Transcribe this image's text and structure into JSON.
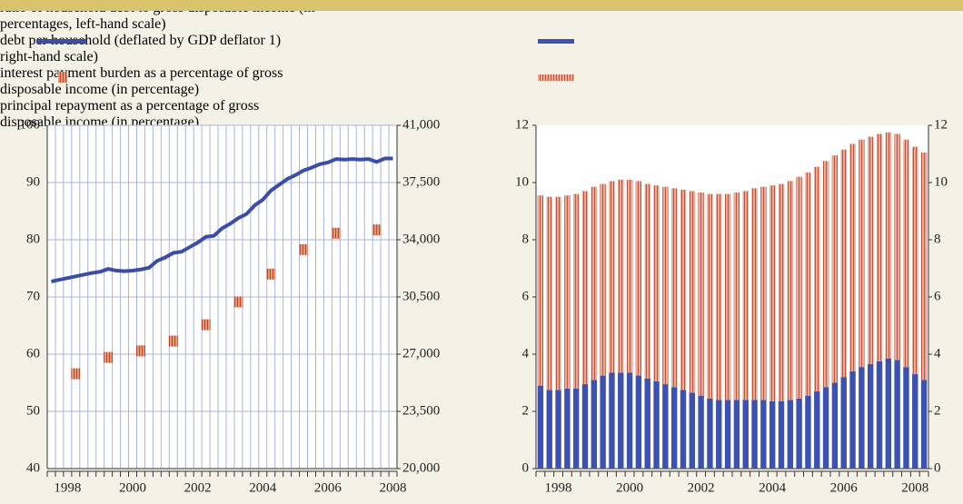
{
  "chart_data": [
    {
      "type": "line",
      "categories": [
        null,
        null,
        "1998",
        null,
        null,
        null,
        null,
        null,
        null,
        null,
        "2000",
        null,
        null,
        null,
        null,
        null,
        null,
        null,
        "2002",
        null,
        null,
        null,
        null,
        null,
        null,
        null,
        "2004",
        null,
        null,
        null,
        null,
        null,
        null,
        null,
        "2006",
        null,
        null,
        null,
        null,
        null,
        null,
        null,
        "2008"
      ],
      "series": [
        {
          "name": "ratio of household debt to gross disposable income (in percentages, left-hand scale)",
          "color": "#3a4ea8",
          "style": "line",
          "values": [
            72.7,
            73.0,
            73.3,
            73.6,
            73.9,
            74.2,
            74.4,
            74.9,
            74.6,
            74.5,
            74.6,
            74.8,
            75.1,
            76.3,
            76.9,
            77.7,
            77.9,
            78.7,
            79.5,
            80.5,
            80.7,
            82.0,
            82.8,
            83.8,
            84.5,
            86.0,
            87.0,
            88.6,
            89.6,
            90.6,
            91.3,
            92.1,
            92.6,
            93.2,
            93.5,
            94.1,
            94.0,
            94.1,
            94.0,
            94.1,
            93.6,
            94.2,
            94.2
          ]
        },
        {
          "name": "debt per household (deflated by GDP deflator 1) right-hand scale)",
          "color": "#d9805c",
          "style": "square-markers",
          "axis": "y2",
          "values": [
            null,
            null,
            null,
            25800,
            null,
            null,
            null,
            26800,
            null,
            null,
            null,
            27200,
            null,
            null,
            null,
            27800,
            null,
            null,
            null,
            28800,
            null,
            null,
            null,
            30200,
            null,
            null,
            null,
            31900,
            null,
            null,
            null,
            33400,
            null,
            null,
            null,
            34400,
            null,
            null,
            null,
            null,
            34600,
            null,
            null
          ]
        }
      ],
      "ylim": [
        40,
        100
      ],
      "yticks": [
        40,
        50,
        60,
        70,
        80,
        90,
        100
      ],
      "y2lim": [
        20000,
        41000
      ],
      "y2ticks": [
        {
          "value": 20000,
          "label": "20,000"
        },
        {
          "value": 23500,
          "label": "23,500"
        },
        {
          "value": 27000,
          "label": "27,000"
        },
        {
          "value": 30500,
          "label": "30,500"
        },
        {
          "value": 34000,
          "label": "34,000"
        },
        {
          "value": 37500,
          "label": "37,500"
        },
        {
          "value": 41000,
          "label": "41,000"
        }
      ],
      "grid": true
    },
    {
      "type": "bar",
      "stacked": true,
      "categories": [
        null,
        null,
        "1998",
        null,
        null,
        null,
        null,
        null,
        null,
        null,
        "2000",
        null,
        null,
        null,
        null,
        null,
        null,
        null,
        "2002",
        null,
        null,
        null,
        null,
        null,
        null,
        null,
        "2004",
        null,
        null,
        null,
        null,
        null,
        null,
        null,
        "2006",
        null,
        null,
        null,
        null,
        null,
        null,
        null,
        "2008",
        null
      ],
      "series": [
        {
          "name": "interest payment burden as a percentage of gross disposable income (in percentage)",
          "color": "#3c51b0",
          "values": [
            2.9,
            2.75,
            2.75,
            2.8,
            2.8,
            2.95,
            3.1,
            3.25,
            3.35,
            3.35,
            3.35,
            3.25,
            3.15,
            3.05,
            2.95,
            2.85,
            2.75,
            2.65,
            2.55,
            2.45,
            2.4,
            2.4,
            2.4,
            2.4,
            2.4,
            2.4,
            2.35,
            2.35,
            2.4,
            2.45,
            2.55,
            2.7,
            2.85,
            3.0,
            3.2,
            3.4,
            3.55,
            3.65,
            3.75,
            3.85,
            3.8,
            3.55,
            3.3,
            3.1
          ]
        },
        {
          "name": "principal repayment as a percentage of gross disposable income (in percentage)",
          "color": "#e9ab98",
          "values": [
            6.65,
            6.75,
            6.75,
            6.75,
            6.8,
            6.75,
            6.75,
            6.7,
            6.7,
            6.75,
            6.75,
            6.8,
            6.8,
            6.85,
            6.9,
            6.95,
            7.0,
            7.05,
            7.1,
            7.15,
            7.2,
            7.2,
            7.25,
            7.3,
            7.4,
            7.45,
            7.55,
            7.6,
            7.65,
            7.75,
            7.8,
            7.85,
            7.9,
            7.95,
            7.95,
            7.95,
            7.95,
            7.95,
            7.95,
            7.9,
            7.9,
            7.95,
            7.95,
            7.95
          ]
        }
      ],
      "ylim": [
        0,
        12
      ],
      "yticks": [
        0,
        2,
        4,
        6,
        8,
        10,
        12
      ],
      "y2lim": [
        0,
        12
      ],
      "y2ticks": [
        0,
        2,
        4,
        6,
        8,
        10,
        12
      ],
      "grid": false
    }
  ]
}
